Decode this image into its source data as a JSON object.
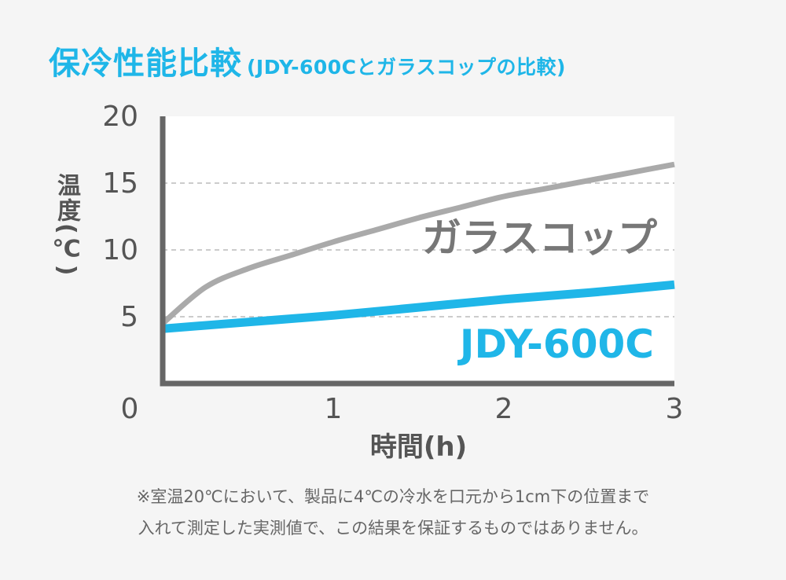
{
  "title": "保冷性能比較",
  "subtitle": "(JDY-600Cとガラスコップの比較)",
  "note": {
    "line1": "※室温20℃において、製品に4℃の冷水を口元から1cm下の位置まで",
    "line2": "入れて測定した実測値で、この結果を保証するものではありません。"
  },
  "colors": {
    "accent": "#1fb6e8",
    "glass": "#aaaaaa",
    "axis": "#666666",
    "text": "#555555"
  },
  "chart_data": {
    "type": "line",
    "title": "保冷性能比較",
    "subtitle": "(JDY-600Cとガラスコップの比較)",
    "xlabel": "時間(h)",
    "ylabel": "温度(℃)",
    "xlim": [
      0,
      3
    ],
    "ylim": [
      0,
      20
    ],
    "xticks": [
      "0",
      "1",
      "2",
      "3"
    ],
    "yticks": [
      "5",
      "10",
      "15",
      "20"
    ],
    "grid": true,
    "series": [
      {
        "name": "ガラスコップ",
        "color": "#aaaaaa",
        "x": [
          0,
          0.25,
          0.5,
          0.75,
          1,
          1.25,
          1.5,
          1.75,
          2,
          2.25,
          2.5,
          2.75,
          3
        ],
        "y": [
          4.5,
          7.2,
          8.6,
          9.6,
          10.6,
          11.5,
          12.4,
          13.2,
          14.0,
          14.6,
          15.2,
          15.8,
          16.4
        ]
      },
      {
        "name": "JDY-600C",
        "color": "#1fb6e8",
        "x": [
          0,
          0.5,
          1,
          1.5,
          2,
          2.5,
          3
        ],
        "y": [
          4.1,
          4.6,
          5.1,
          5.7,
          6.3,
          6.8,
          7.4
        ]
      }
    ]
  }
}
